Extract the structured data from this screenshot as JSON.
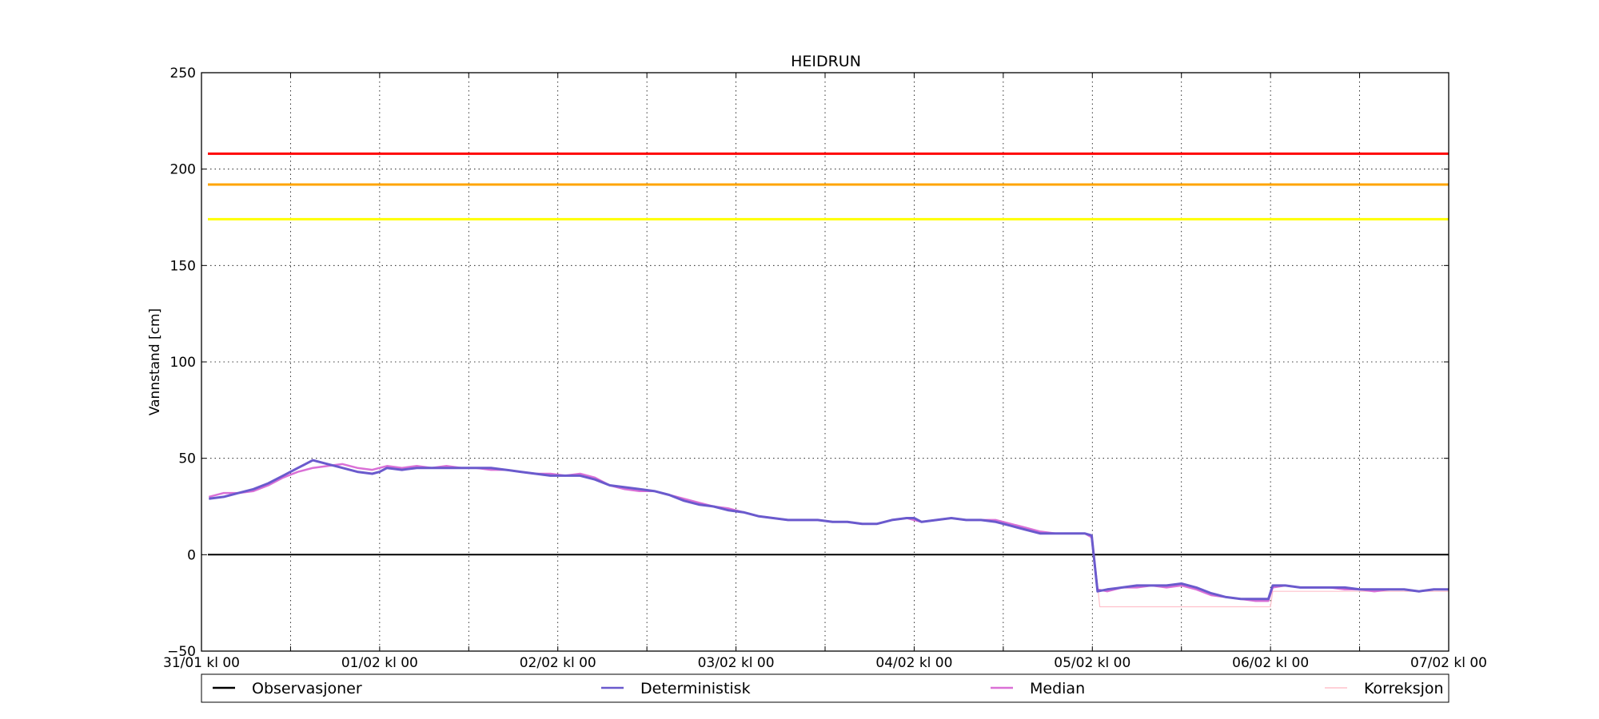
{
  "chart_data": {
    "type": "line",
    "title": "HEIDRUN",
    "ylabel": "Vannstand [cm]",
    "xlabel": "",
    "ylim": [
      -50,
      250
    ],
    "yticks": [
      -50,
      0,
      50,
      100,
      150,
      200,
      250
    ],
    "xlim": [
      0,
      168
    ],
    "xticks": [
      {
        "x": 0,
        "label": "31/01 kl 00"
      },
      {
        "x": 24,
        "label": "01/02 kl 00"
      },
      {
        "x": 48,
        "label": "02/02 kl 00"
      },
      {
        "x": 72,
        "label": "03/02 kl 00"
      },
      {
        "x": 96,
        "label": "04/02 kl 00"
      },
      {
        "x": 120,
        "label": "05/02 kl 00"
      },
      {
        "x": 144,
        "label": "06/02 kl 00"
      },
      {
        "x": 168,
        "label": "07/02 kl 00"
      }
    ],
    "minor_xticks": [
      12,
      36,
      60,
      84,
      108,
      132,
      156
    ],
    "grid": true,
    "x_unit": "hours since 31/01 kl 00",
    "thresholds": [
      {
        "value": 208,
        "color": "#ff0000"
      },
      {
        "value": 192,
        "color": "#ffa500"
      },
      {
        "value": 174,
        "color": "#ffff00"
      }
    ],
    "series": [
      {
        "name": "Observasjoner",
        "color": "#000000",
        "x": [
          0,
          168
        ],
        "y": [
          0,
          0
        ]
      },
      {
        "name": "Deterministisk",
        "color": "#6a5acd",
        "x": [
          1,
          3,
          5,
          7,
          9,
          11,
          13,
          15,
          17,
          19,
          21,
          23,
          24,
          25,
          27,
          29,
          31,
          33,
          35,
          37,
          39,
          41,
          43,
          45,
          47,
          49,
          51,
          53,
          55,
          57,
          59,
          61,
          63,
          65,
          67,
          69,
          71,
          73,
          75,
          77,
          79,
          81,
          83,
          85,
          87,
          89,
          91,
          93,
          95,
          96,
          97,
          99,
          101,
          103,
          105,
          107,
          109,
          111,
          113,
          115,
          117,
          119,
          119.9,
          120.7,
          122,
          124,
          126,
          128,
          130,
          132,
          134,
          136,
          138,
          140,
          142,
          143.7,
          144.3,
          146,
          148,
          150,
          152,
          154,
          156,
          158,
          160,
          162,
          164,
          166,
          168
        ],
        "y": [
          29,
          30,
          32,
          34,
          37,
          41,
          45,
          49,
          47,
          45,
          43,
          42,
          43,
          45,
          44,
          45,
          45,
          45,
          45,
          45,
          45,
          44,
          43,
          42,
          41,
          41,
          41,
          39,
          36,
          35,
          34,
          33,
          31,
          28,
          26,
          25,
          23,
          22,
          20,
          19,
          18,
          18,
          18,
          17,
          17,
          16,
          16,
          18,
          19,
          19,
          17,
          18,
          19,
          18,
          18,
          17,
          15,
          13,
          11,
          11,
          11,
          11,
          10,
          -19,
          -18,
          -17,
          -16,
          -16,
          -16,
          -15,
          -17,
          -20,
          -22,
          -23,
          -23,
          -23,
          -16,
          -16,
          -17,
          -17,
          -17,
          -17,
          -18,
          -18,
          -18,
          -18,
          -19,
          -18,
          -18
        ]
      },
      {
        "name": "Median",
        "color": "#da70d6",
        "x": [
          1,
          3,
          5,
          7,
          9,
          11,
          13,
          15,
          17,
          19,
          21,
          23,
          25,
          27,
          29,
          31,
          33,
          35,
          37,
          39,
          41,
          43,
          45,
          47,
          49,
          51,
          53,
          55,
          57,
          59,
          61,
          63,
          65,
          67,
          69,
          71,
          73,
          75,
          77,
          79,
          81,
          83,
          85,
          87,
          89,
          91,
          93,
          95,
          97,
          99,
          101,
          103,
          105,
          107,
          109,
          111,
          113,
          115,
          117,
          119,
          119.9,
          120.7,
          122,
          124,
          126,
          128,
          130,
          132,
          134,
          136,
          138,
          140,
          142,
          143.7,
          144.3,
          146,
          148,
          150,
          152,
          154,
          156,
          158,
          160,
          162,
          164,
          166,
          168
        ],
        "y": [
          30,
          32,
          32,
          33,
          36,
          40,
          43,
          45,
          46,
          47,
          45,
          44,
          46,
          45,
          46,
          45,
          46,
          45,
          45,
          44,
          44,
          43,
          42,
          42,
          41,
          42,
          40,
          36,
          34,
          33,
          33,
          31,
          29,
          27,
          25,
          24,
          22,
          20,
          19,
          18,
          18,
          18,
          17,
          17,
          16,
          16,
          18,
          19,
          17,
          18,
          19,
          18,
          18,
          18,
          16,
          14,
          12,
          11,
          11,
          11,
          9,
          -18,
          -19,
          -17,
          -17,
          -16,
          -17,
          -16,
          -18,
          -21,
          -22,
          -23,
          -24,
          -24,
          -17,
          -16,
          -17,
          -17,
          -17,
          -18,
          -18,
          -19,
          -18,
          -18,
          -19,
          -18,
          -18
        ]
      },
      {
        "name": "Korreksjon",
        "color": "#ffc0cb",
        "x": [
          120,
          121,
          144,
          144.3,
          168
        ],
        "y": [
          10,
          -27,
          -27,
          -19,
          -19
        ]
      }
    ],
    "legend": {
      "placement": "bottom",
      "entries": [
        "Observasjoner",
        "Deterministisk",
        "Median",
        "Korreksjon"
      ]
    }
  }
}
